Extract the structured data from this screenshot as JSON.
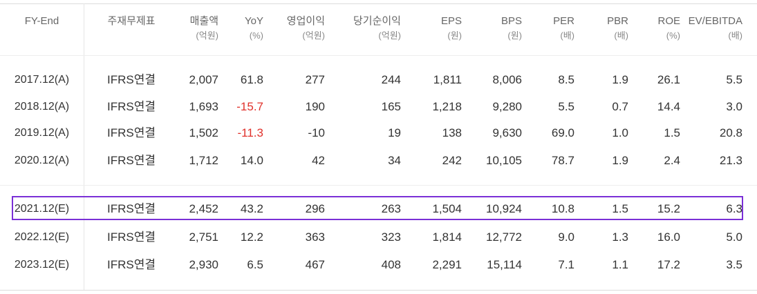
{
  "columns": [
    {
      "l1": "FY-End",
      "l2": ""
    },
    {
      "l1": "주재무제표",
      "l2": ""
    },
    {
      "l1": "매출액",
      "l2": "(억원)"
    },
    {
      "l1": "YoY",
      "l2": "(%)"
    },
    {
      "l1": "영업이익",
      "l2": "(억원)"
    },
    {
      "l1": "당기순이익",
      "l2": "(억원)"
    },
    {
      "l1": "EPS",
      "l2": "(원)"
    },
    {
      "l1": "BPS",
      "l2": "(원)"
    },
    {
      "l1": "PER",
      "l2": "(배)"
    },
    {
      "l1": "PBR",
      "l2": "(배)"
    },
    {
      "l1": "ROE",
      "l2": "(%)"
    },
    {
      "l1": "EV/EBITDA",
      "l2": "(배)"
    }
  ],
  "rows": [
    {
      "year": "2017.12(A)",
      "type": "IFRS연결",
      "sales": "2,007",
      "yoy": "61.8",
      "op": "277",
      "net": "244",
      "eps": "1,811",
      "bps": "8,006",
      "per": "8.5",
      "pbr": "1.9",
      "roe": "26.1",
      "ev": "5.5"
    },
    {
      "year": "2018.12(A)",
      "type": "IFRS연결",
      "sales": "1,693",
      "yoy": "-15.7",
      "op": "190",
      "net": "165",
      "eps": "1,218",
      "bps": "9,280",
      "per": "5.5",
      "pbr": "0.7",
      "roe": "14.4",
      "ev": "3.0"
    },
    {
      "year": "2019.12(A)",
      "type": "IFRS연결",
      "sales": "1,502",
      "yoy": "-11.3",
      "op": "-10",
      "net": "19",
      "eps": "138",
      "bps": "9,630",
      "per": "69.0",
      "pbr": "1.0",
      "roe": "1.5",
      "ev": "20.8"
    },
    {
      "year": "2020.12(A)",
      "type": "IFRS연결",
      "sales": "1,712",
      "yoy": "14.0",
      "op": "42",
      "net": "34",
      "eps": "242",
      "bps": "10,105",
      "per": "78.7",
      "pbr": "1.9",
      "roe": "2.4",
      "ev": "21.3"
    },
    {
      "year": "2021.12(E)",
      "type": "IFRS연결",
      "sales": "2,452",
      "yoy": "43.2",
      "op": "296",
      "net": "263",
      "eps": "1,504",
      "bps": "10,924",
      "per": "10.8",
      "pbr": "1.5",
      "roe": "15.2",
      "ev": "6.3"
    },
    {
      "year": "2022.12(E)",
      "type": "IFRS연결",
      "sales": "2,751",
      "yoy": "12.2",
      "op": "363",
      "net": "323",
      "eps": "1,814",
      "bps": "12,772",
      "per": "9.0",
      "pbr": "1.3",
      "roe": "16.0",
      "ev": "5.0"
    },
    {
      "year": "2023.12(E)",
      "type": "IFRS연결",
      "sales": "2,930",
      "yoy": "6.5",
      "op": "467",
      "net": "408",
      "eps": "2,291",
      "bps": "15,114",
      "per": "7.1",
      "pbr": "1.1",
      "roe": "17.2",
      "ev": "3.5"
    }
  ],
  "colors": {
    "negative": "#e0312b",
    "highlight_border": "#7a2fd6"
  }
}
